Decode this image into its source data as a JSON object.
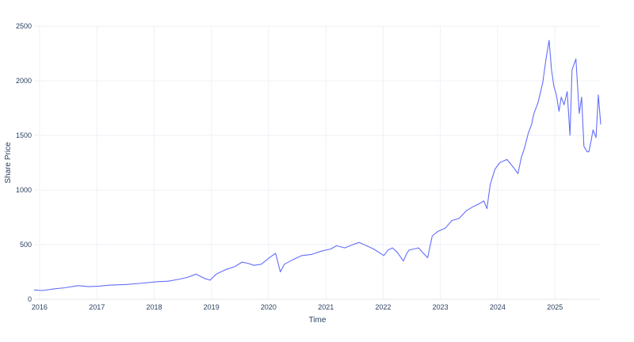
{
  "chart_data": {
    "type": "line",
    "title": "",
    "xlabel": "Time",
    "ylabel": "Share Price",
    "xlim": [
      "2015-11-27",
      "2025-10-20"
    ],
    "ylim": [
      0,
      2500
    ],
    "x_ticks": [
      "2016",
      "2017",
      "2018",
      "2019",
      "2020",
      "2021",
      "2022",
      "2023",
      "2024",
      "2025"
    ],
    "y_ticks": [
      "0",
      "500",
      "1000",
      "1500",
      "2000",
      "2500"
    ],
    "grid": true,
    "legend": "none",
    "series": [
      {
        "color": "#636efa",
        "x": [
          "2015-11-27",
          "2016-01-20",
          "2016-04-01",
          "2016-06-10",
          "2016-09-01",
          "2016-11-10",
          "2017-01-15",
          "2017-04-01",
          "2017-07-01",
          "2017-10-01",
          "2018-01-15",
          "2018-04-01",
          "2018-06-15",
          "2018-08-01",
          "2018-09-25",
          "2018-10-15",
          "2018-11-20",
          "2018-12-24",
          "2019-02-01",
          "2019-04-01",
          "2019-06-01",
          "2019-07-15",
          "2019-08-20",
          "2019-10-01",
          "2019-11-15",
          "2020-01-15",
          "2020-02-15",
          "2020-03-16",
          "2020-04-10",
          "2020-06-01",
          "2020-08-01",
          "2020-10-01",
          "2020-12-01",
          "2021-02-01",
          "2021-03-10",
          "2021-05-01",
          "2021-07-01",
          "2021-08-01",
          "2021-09-01",
          "2021-11-01",
          "2022-01-05",
          "2022-02-01",
          "2022-03-01",
          "2022-04-01",
          "2022-05-10",
          "2022-06-01",
          "2022-06-15",
          "2022-08-15",
          "2022-09-15",
          "2022-10-12",
          "2022-11-10",
          "2022-12-15",
          "2023-02-01",
          "2023-03-15",
          "2023-05-01",
          "2023-06-15",
          "2023-08-01",
          "2023-09-01",
          "2023-10-05",
          "2023-10-25",
          "2023-11-15",
          "2023-12-15",
          "2024-01-15",
          "2024-03-01",
          "2024-04-15",
          "2024-05-10",
          "2024-06-01",
          "2024-06-20",
          "2024-07-15",
          "2024-08-05",
          "2024-08-20",
          "2024-09-15",
          "2024-10-15",
          "2024-11-05",
          "2024-11-25",
          "2024-12-10",
          "2024-12-25",
          "2025-01-10",
          "2025-01-27",
          "2025-02-10",
          "2025-02-28",
          "2025-03-20",
          "2025-04-07",
          "2025-04-20",
          "2025-05-15",
          "2025-06-05",
          "2025-06-20",
          "2025-07-05",
          "2025-07-25",
          "2025-08-05",
          "2025-08-20",
          "2025-09-01",
          "2025-09-20",
          "2025-10-05",
          "2025-10-20"
        ],
        "values": [
          85,
          80,
          95,
          105,
          125,
          115,
          120,
          130,
          135,
          145,
          160,
          165,
          185,
          200,
          230,
          215,
          190,
          175,
          230,
          270,
          300,
          340,
          330,
          310,
          320,
          390,
          420,
          250,
          320,
          360,
          400,
          410,
          440,
          460,
          490,
          470,
          505,
          520,
          500,
          460,
          400,
          450,
          470,
          430,
          350,
          420,
          450,
          470,
          420,
          380,
          580,
          620,
          650,
          720,
          740,
          810,
          850,
          870,
          900,
          830,
          1050,
          1190,
          1250,
          1280,
          1200,
          1150,
          1300,
          1380,
          1520,
          1600,
          1700,
          1800,
          1980,
          2200,
          2370,
          2100,
          1950,
          1870,
          1720,
          1850,
          1780,
          1900,
          1500,
          2100,
          2200,
          1700,
          1850,
          1400,
          1350,
          1350,
          1450,
          1550,
          1480,
          1870,
          1600
        ]
      }
    ]
  }
}
